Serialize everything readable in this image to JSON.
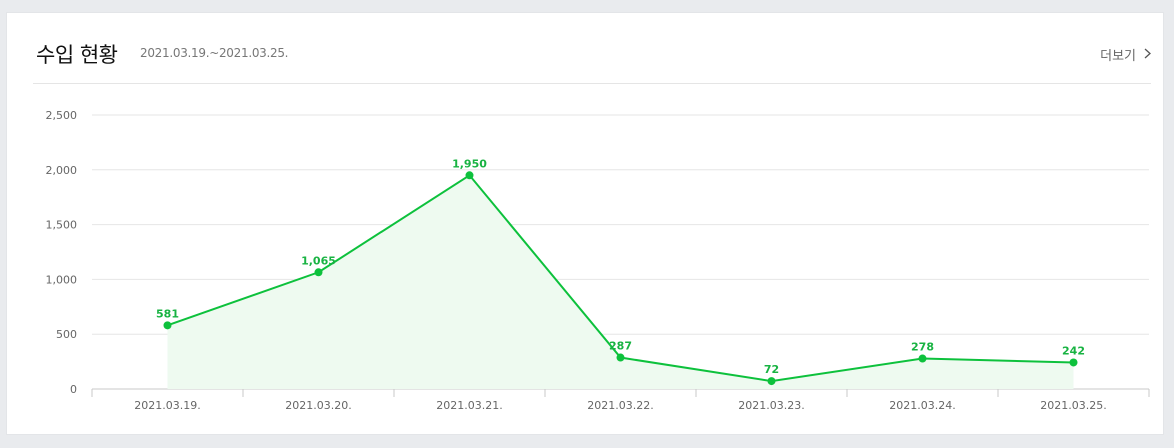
{
  "header": {
    "title": "수입 현황",
    "period": "2021.03.19.~2021.03.25.",
    "more_label": "더보기"
  },
  "colors": {
    "accent": "#0dc13c",
    "area_fill": "#eefaf0",
    "grid": "#e6e6e6",
    "axis": "#c8c8c8"
  },
  "chart_data": {
    "type": "line",
    "title": "",
    "xlabel": "",
    "ylabel": "",
    "categories": [
      "2021.03.19.",
      "2021.03.20.",
      "2021.03.21.",
      "2021.03.22.",
      "2021.03.23.",
      "2021.03.24.",
      "2021.03.25."
    ],
    "values": [
      581,
      1065,
      1950,
      287,
      72,
      278,
      242
    ],
    "value_labels": [
      "581",
      "1,065",
      "1,950",
      "287",
      "72",
      "278",
      "242"
    ],
    "y_ticks": [
      0,
      500,
      1000,
      1500,
      2000,
      2500
    ],
    "y_tick_labels": [
      "0",
      "500",
      "1,000",
      "1,500",
      "2,000",
      "2,500"
    ],
    "ylim": [
      0,
      2500
    ],
    "grid": true,
    "area_filled": true,
    "legend": "none"
  }
}
